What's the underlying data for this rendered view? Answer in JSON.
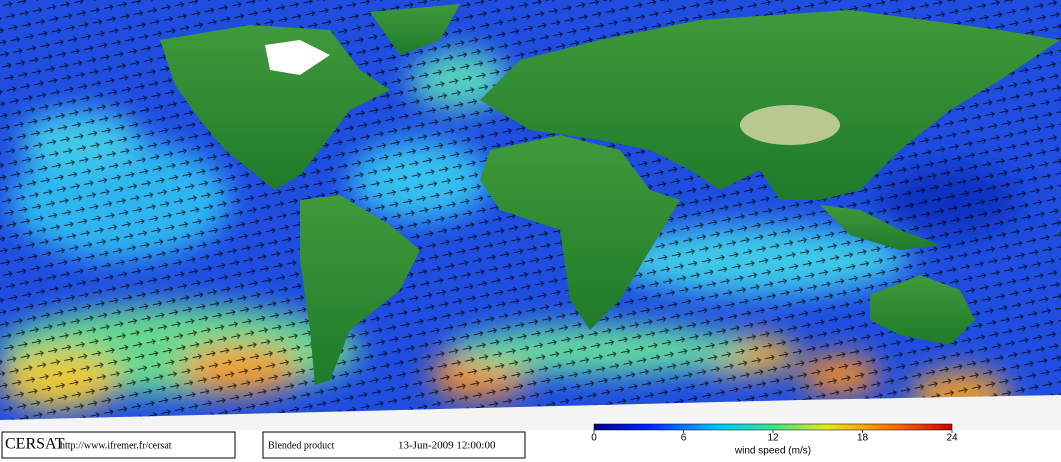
{
  "footer": {
    "logo": "CERSAT",
    "url": "http://www.ifremer.fr/cersat",
    "product": "Blended product",
    "date": "13-Jun-2009 12:00:00"
  },
  "colorbar": {
    "label": "wind speed (m/s)",
    "lim": [
      0,
      24
    ],
    "ticks": [
      0,
      6,
      12,
      18,
      24
    ]
  }
}
